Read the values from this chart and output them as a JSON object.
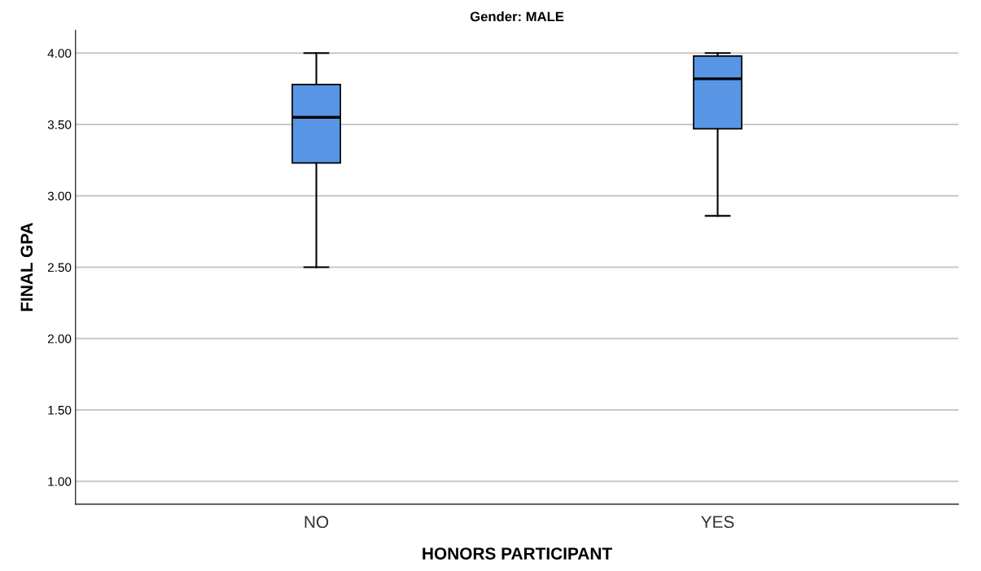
{
  "chart_data": {
    "type": "box",
    "title": "Gender: MALE",
    "xlabel": "HONORS PARTICIPANT",
    "ylabel": "FINAL GPA",
    "categories": [
      "NO",
      "YES"
    ],
    "boxes": [
      {
        "low": 2.5,
        "q1": 3.23,
        "median": 3.55,
        "q3": 3.78,
        "high": 4.0
      },
      {
        "low": 2.86,
        "q1": 3.47,
        "median": 3.82,
        "q3": 3.98,
        "high": 4.0
      }
    ],
    "color": "#5895e5",
    "ylim": [
      0.84,
      4.16
    ],
    "yticks": [
      {
        "value": 1,
        "label": "1.00"
      },
      {
        "value": 1.5,
        "label": "1.50"
      },
      {
        "value": 2,
        "label": "2.00"
      },
      {
        "value": 2.5,
        "label": "2.50"
      },
      {
        "value": 3,
        "label": "3.00"
      },
      {
        "value": 3.5,
        "label": "3.50"
      },
      {
        "value": 4,
        "label": "4.00"
      }
    ],
    "grid": "y",
    "legend": false
  }
}
